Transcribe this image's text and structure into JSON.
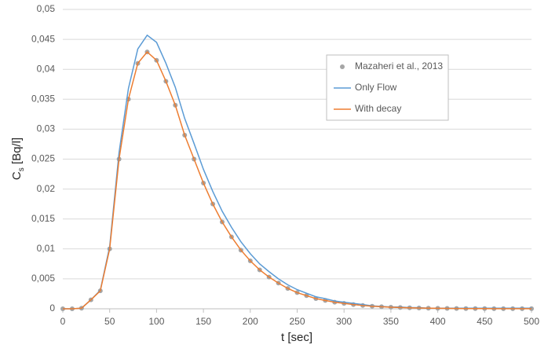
{
  "chart_data": {
    "type": "line",
    "xlabel": "t [sec]",
    "ylabel": "C",
    "ylabel_sub": "s",
    "ylabel_unit": " [Bq/l]",
    "x": [
      0,
      10,
      20,
      30,
      40,
      50,
      60,
      70,
      80,
      90,
      100,
      110,
      120,
      130,
      140,
      150,
      160,
      170,
      180,
      190,
      200,
      210,
      220,
      230,
      240,
      250,
      260,
      270,
      280,
      290,
      300,
      310,
      320,
      330,
      340,
      350,
      360,
      370,
      380,
      390,
      400,
      410,
      420,
      430,
      440,
      450,
      460,
      470,
      480,
      490,
      500
    ],
    "series": [
      {
        "name": "Mazaheri et al., 2013",
        "color": "#a5a5a5",
        "style": "dots",
        "values": [
          0,
          0,
          0.0001,
          0.0015,
          0.003,
          0.01,
          0.025,
          0.035,
          0.041,
          0.0429,
          0.0415,
          0.038,
          0.034,
          0.029,
          0.025,
          0.021,
          0.0175,
          0.0145,
          0.012,
          0.0098,
          0.008,
          0.0065,
          0.0053,
          0.0043,
          0.0034,
          0.0027,
          0.0022,
          0.0017,
          0.0014,
          0.0011,
          0.0009,
          0.0007,
          0.00055,
          0.00043,
          0.00034,
          0.00027,
          0.00021,
          0.00017,
          0.00013,
          0.0001,
          8e-05,
          6e-05,
          5e-05,
          4e-05,
          3e-05,
          3e-05,
          2e-05,
          2e-05,
          1e-05,
          1e-05,
          1e-05
        ]
      },
      {
        "name": "Only Flow",
        "color": "#5b9bd5",
        "style": "line",
        "values": [
          0,
          0,
          0.0001,
          0.0015,
          0.0031,
          0.0104,
          0.0261,
          0.0368,
          0.0434,
          0.0457,
          0.0445,
          0.041,
          0.037,
          0.0318,
          0.0276,
          0.0233,
          0.0196,
          0.0163,
          0.0136,
          0.0112,
          0.0092,
          0.0075,
          0.0062,
          0.005,
          0.004,
          0.0032,
          0.0026,
          0.002,
          0.0017,
          0.0013,
          0.0011,
          0.0009,
          0.0007,
          0.0005,
          0.0004,
          0.0003,
          0.0003,
          0.0002,
          0.0002,
          0.0001,
          0.0001,
          0.0001,
          0.0001,
          0.0001,
          0.0001,
          0.0001,
          0.0001,
          0.0001,
          0.0001,
          0.0001,
          0.0001
        ]
      },
      {
        "name": "With decay",
        "color": "#ed7d31",
        "style": "line",
        "values": [
          0,
          0,
          0.0001,
          0.0015,
          0.003,
          0.01,
          0.025,
          0.035,
          0.041,
          0.0429,
          0.0415,
          0.038,
          0.034,
          0.029,
          0.025,
          0.021,
          0.0175,
          0.0145,
          0.012,
          0.0098,
          0.008,
          0.0065,
          0.0053,
          0.0043,
          0.0034,
          0.0027,
          0.0022,
          0.0017,
          0.0014,
          0.0011,
          0.0009,
          0.0007,
          0.00055,
          0.00043,
          0.00034,
          0.00027,
          0.00021,
          0.00017,
          0.00013,
          0.0001,
          8e-05,
          6e-05,
          5e-05,
          4e-05,
          3e-05,
          3e-05,
          2e-05,
          2e-05,
          1e-05,
          1e-05,
          1e-05
        ]
      }
    ],
    "xlim": [
      0,
      500
    ],
    "xticks": [
      0,
      50,
      100,
      150,
      200,
      250,
      300,
      350,
      400,
      450,
      500
    ],
    "ylim": [
      0,
      0.05
    ],
    "yticks": [
      0,
      {
        "value": 0.005,
        "label": "0,005"
      },
      {
        "value": 0.01,
        "label": "0,01"
      },
      {
        "value": 0.015,
        "label": "0,015"
      },
      {
        "value": 0.02,
        "label": "0,02"
      },
      {
        "value": 0.025,
        "label": "0,025"
      },
      {
        "value": 0.03,
        "label": "0,03"
      },
      {
        "value": 0.035,
        "label": "0,035"
      },
      {
        "value": 0.04,
        "label": "0,04"
      },
      {
        "value": 0.045,
        "label": "0,045"
      },
      {
        "value": 0.05,
        "label": "0,05"
      }
    ],
    "grid": true
  }
}
